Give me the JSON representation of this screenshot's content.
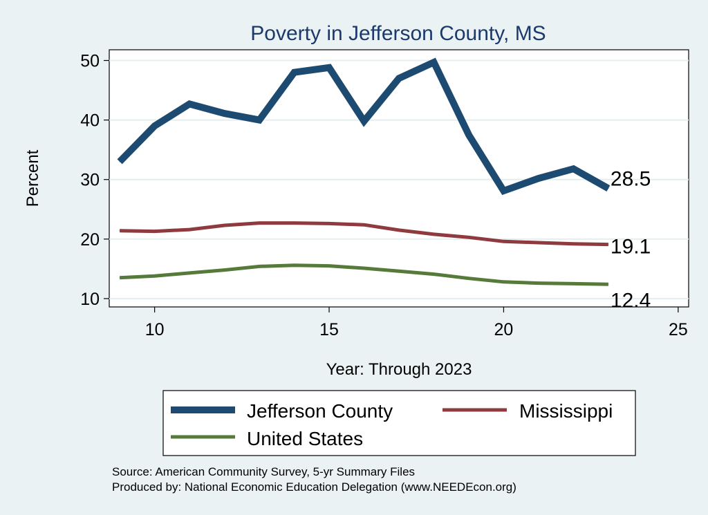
{
  "chart_data": {
    "type": "line",
    "title": "Poverty in Jefferson County, MS",
    "xlabel": "Year: Through 2023",
    "ylabel": "Percent",
    "xlim": [
      8.7,
      25.3
    ],
    "ylim": [
      8.6,
      51.8
    ],
    "xticks": [
      10,
      15,
      20,
      25
    ],
    "yticks": [
      10,
      20,
      30,
      40,
      50
    ],
    "grid": true,
    "legend_position": "bottom",
    "series": [
      {
        "name": "Jefferson County",
        "color": "#1d4a70",
        "end_label": "28.5",
        "x": [
          9,
          10,
          11,
          12,
          13,
          14,
          15,
          16,
          17,
          18,
          19,
          20,
          21,
          22,
          23
        ],
        "y": [
          33.0,
          39.0,
          42.7,
          41.1,
          40.0,
          48.0,
          48.8,
          39.8,
          47.0,
          49.7,
          37.5,
          28.1,
          30.2,
          31.8,
          28.5
        ]
      },
      {
        "name": "Mississippi",
        "color": "#8e3a3e",
        "end_label": "19.1",
        "x": [
          9,
          10,
          11,
          12,
          13,
          14,
          15,
          16,
          17,
          18,
          19,
          20,
          21,
          22,
          23
        ],
        "y": [
          21.4,
          21.3,
          21.6,
          22.3,
          22.7,
          22.7,
          22.6,
          22.4,
          21.5,
          20.8,
          20.3,
          19.6,
          19.4,
          19.2,
          19.1
        ]
      },
      {
        "name": "United States",
        "color": "#557a3a",
        "end_label": "12.4",
        "x": [
          9,
          10,
          11,
          12,
          13,
          14,
          15,
          16,
          17,
          18,
          19,
          20,
          21,
          22,
          23
        ],
        "y": [
          13.5,
          13.8,
          14.3,
          14.8,
          15.4,
          15.6,
          15.5,
          15.1,
          14.6,
          14.1,
          13.4,
          12.8,
          12.6,
          12.5,
          12.4
        ]
      }
    ]
  },
  "footer": {
    "source": "Source: American Community Survey, 5-yr Summary Files",
    "produced_by": "Produced by: National Economic Education Delegation (www.NEEDEcon.org)"
  }
}
